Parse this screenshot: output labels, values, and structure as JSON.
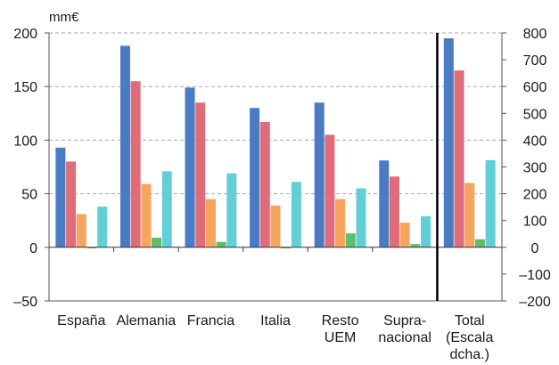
{
  "chart_data": {
    "type": "bar",
    "unit_label": "mm€",
    "categories": [
      [
        "España"
      ],
      [
        "Alemania"
      ],
      [
        "Francia"
      ],
      [
        "Italia"
      ],
      [
        "Resto",
        "UEM"
      ],
      [
        "Supra-",
        "nacional"
      ],
      [
        "Total",
        "(Escala",
        "dcha.)"
      ]
    ],
    "series_colors": [
      "#4a7cc4",
      "#e06c7a",
      "#f7a45e",
      "#5cbf6a",
      "#62cfd8"
    ],
    "series_values": [
      [
        93,
        188,
        149,
        130,
        135,
        81
      ],
      [
        80,
        155,
        135,
        117,
        105,
        66
      ],
      [
        31,
        59,
        45,
        39,
        45,
        23
      ],
      [
        -1,
        9,
        5,
        -1,
        13,
        3
      ],
      [
        38,
        71,
        69,
        61,
        55,
        29
      ]
    ],
    "total_values": [
      780,
      660,
      240,
      30,
      325
    ],
    "y_left": {
      "lim": [
        -50,
        200
      ],
      "ticks": [
        -50,
        0,
        50,
        100,
        150,
        200
      ],
      "tick_labels": [
        "–50",
        "0",
        "50",
        "100",
        "150",
        "200"
      ]
    },
    "y_right": {
      "lim": [
        -200,
        800
      ],
      "ticks": [
        -200,
        -100,
        0,
        100,
        200,
        300,
        400,
        500,
        600,
        700,
        800
      ],
      "tick_labels": [
        "–200",
        "–100",
        "0",
        "100",
        "200",
        "300",
        "400",
        "500",
        "600",
        "700",
        "800"
      ]
    },
    "grid": true
  }
}
